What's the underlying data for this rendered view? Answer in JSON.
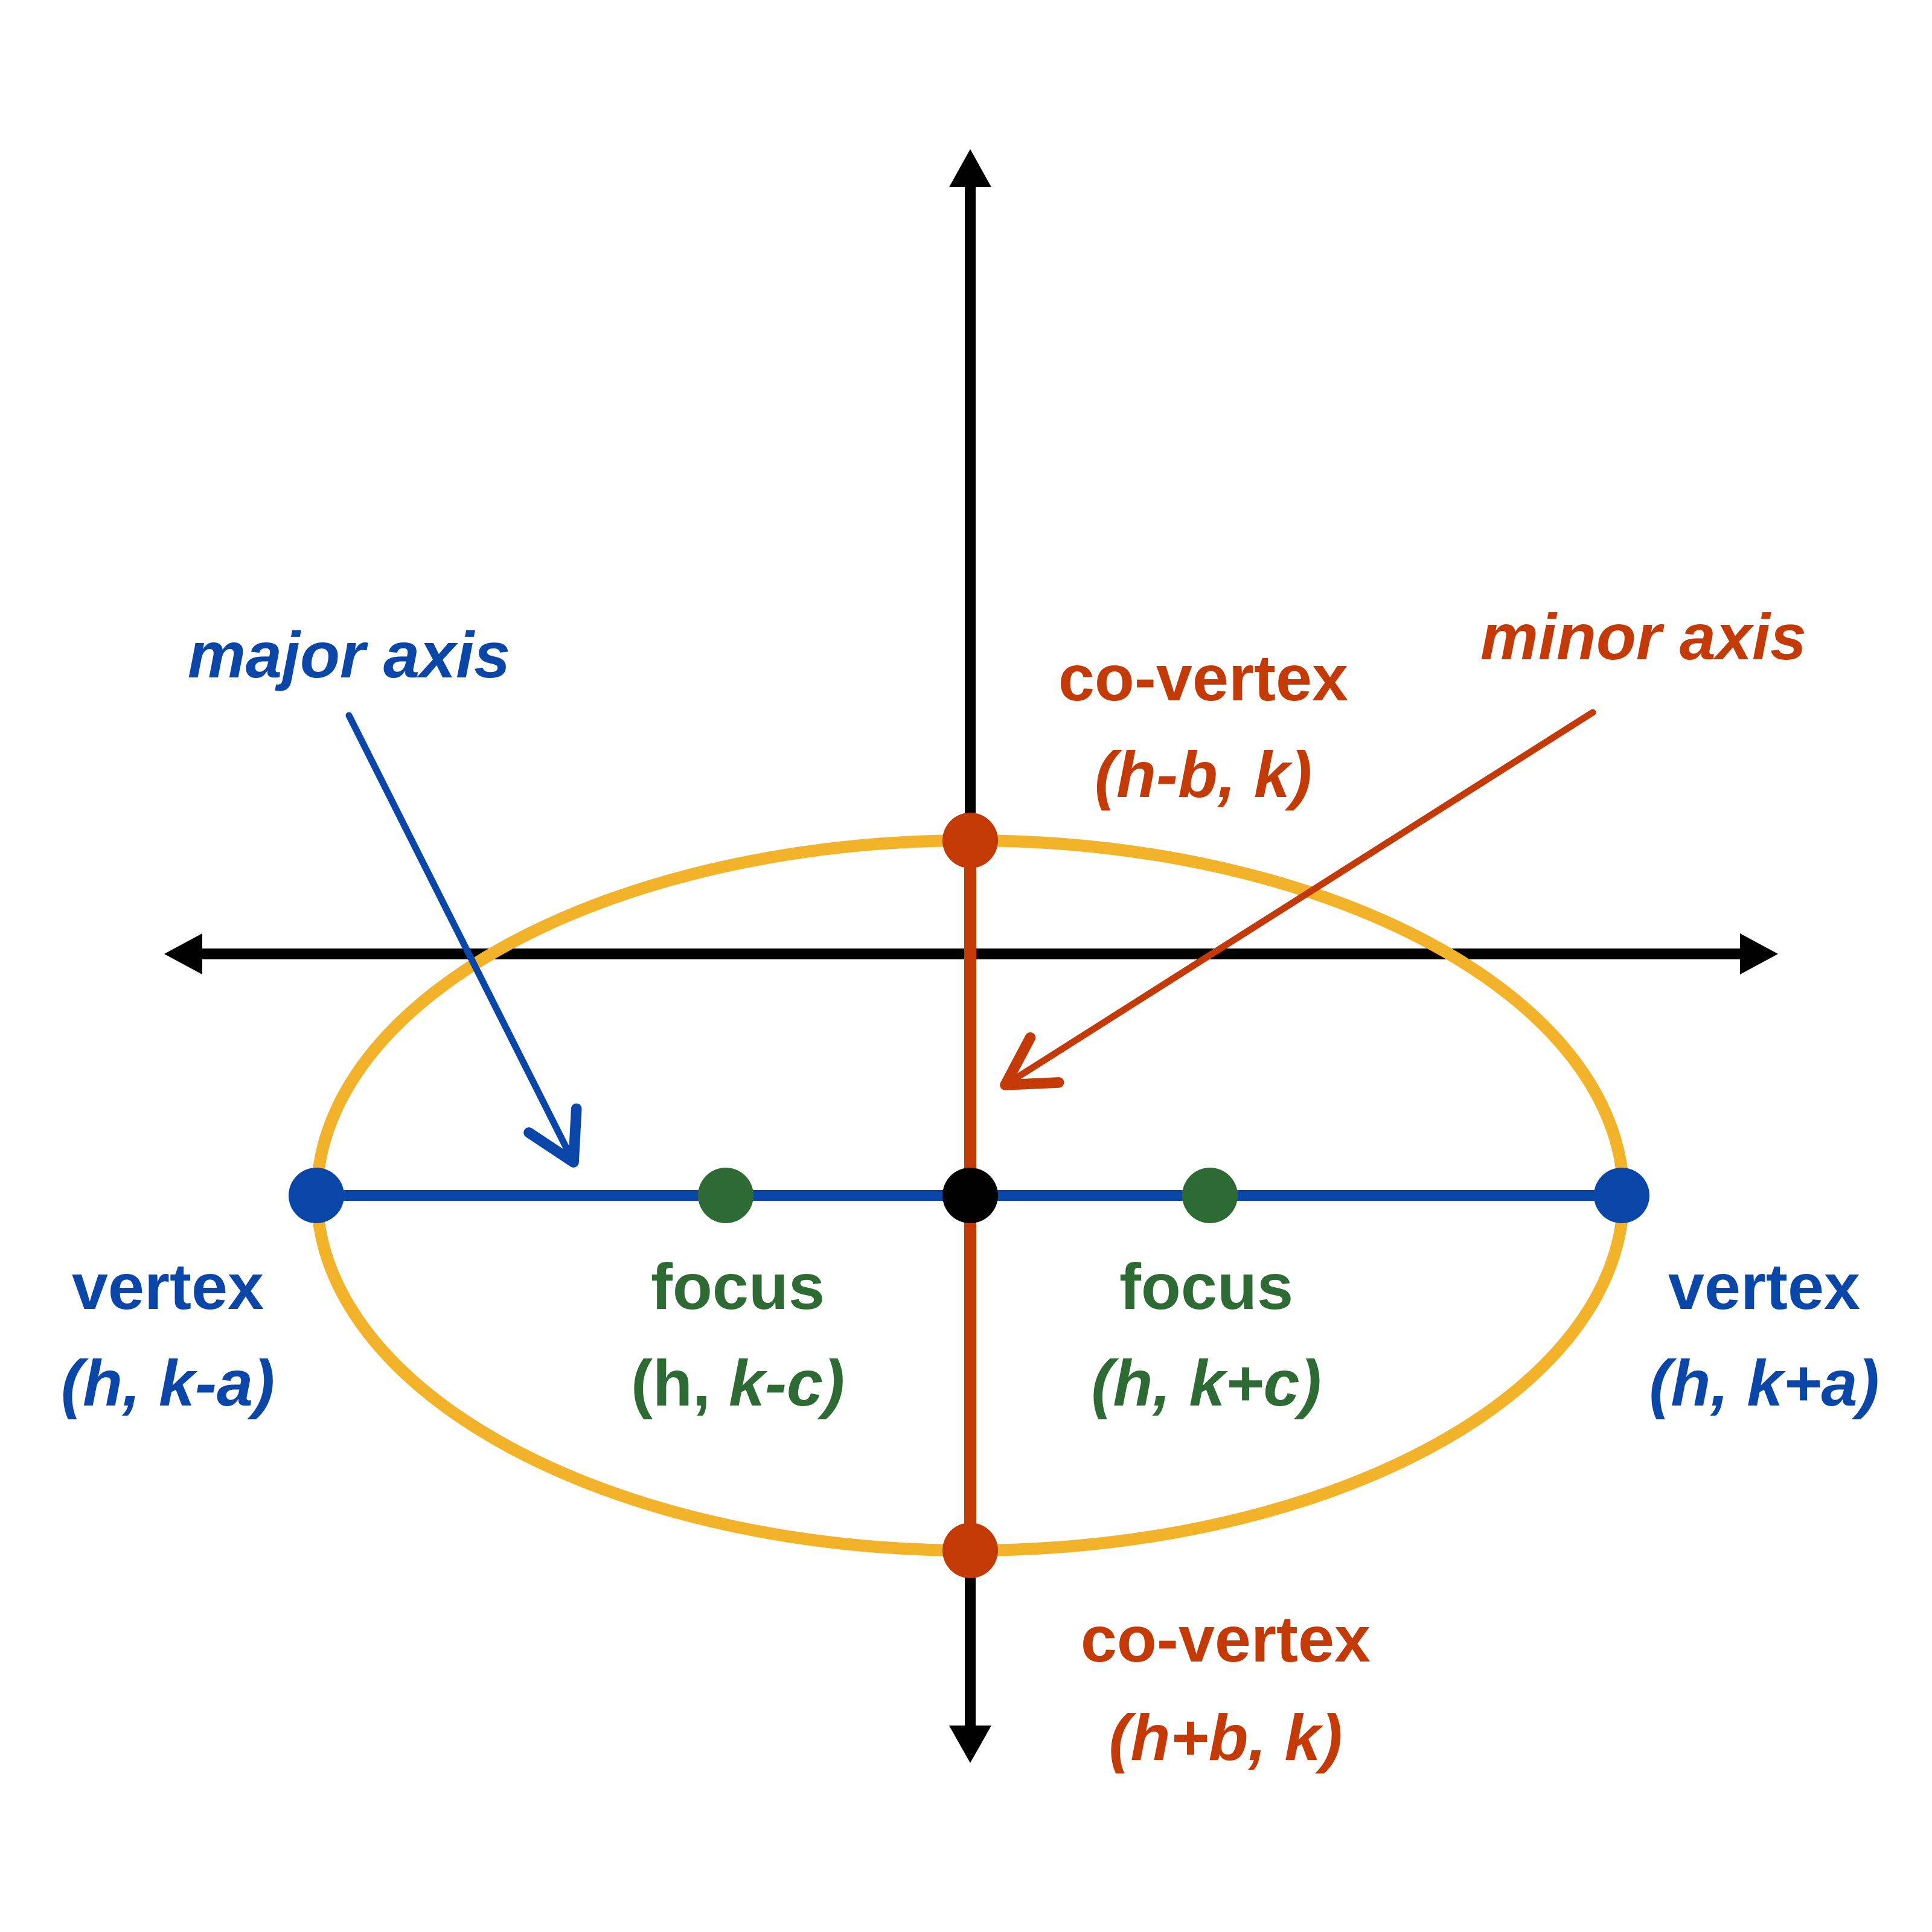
{
  "colors": {
    "axes": "#000000",
    "ellipse": "#F2B22A",
    "major": "#0A46A8",
    "minor": "#C43A06",
    "focus": "#2E6B34",
    "center": "#000000"
  },
  "labels": {
    "major_axis": "major axis",
    "minor_axis": "minor axis",
    "covertex_top": "co-vertex",
    "covertex_top_coord": "(h-b, k)",
    "covertex_bottom": "co-vertex",
    "covertex_bottom_coord": "(h+b, k)",
    "vertex_left": "vertex",
    "vertex_left_coord": "(h, k-a)",
    "vertex_right": "vertex",
    "vertex_right_coord": "(h, k+a)",
    "focus_left": "focus",
    "focus_left_coord_plain": "(h, ",
    "focus_left_coord_italic": "k-c)",
    "focus_right": "focus",
    "focus_right_coord": "(h, k+c)"
  }
}
